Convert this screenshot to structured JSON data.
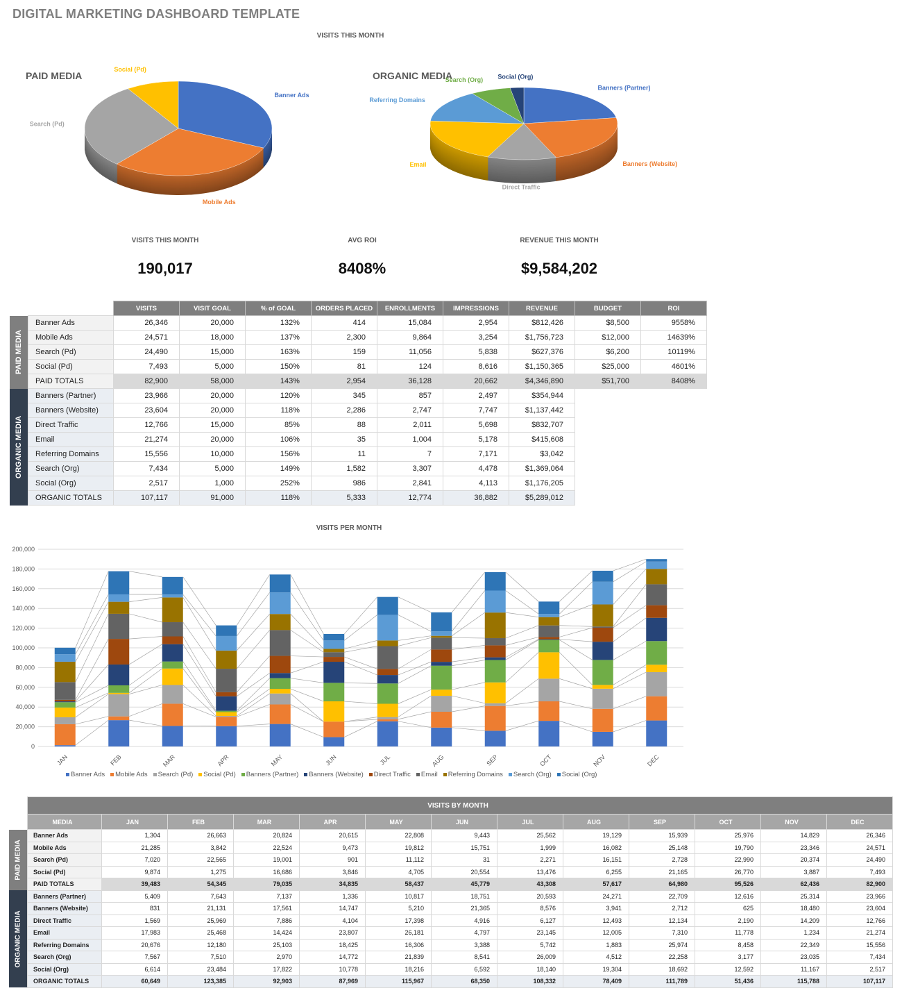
{
  "title": "DIGITAL MARKETING DASHBOARD TEMPLATE",
  "section_label": "VISITS THIS MONTH",
  "kpis": [
    {
      "label": "VISITS THIS MONTH",
      "value": "190,017"
    },
    {
      "label": "AVG ROI",
      "value": "8408%"
    },
    {
      "label": "REVENUE THIS MONTH",
      "value": "$9,584,202"
    }
  ],
  "main_table": {
    "columns": [
      "VISITS",
      "VISIT GOAL",
      "% of GOAL",
      "ORDERS PLACED",
      "ENROLLMENTS",
      "IMPRESSIONS",
      "REVENUE",
      "BUDGET",
      "ROI"
    ],
    "paid": {
      "group_label": "PAID MEDIA",
      "rows": [
        {
          "name": "Banner Ads",
          "values": [
            "26,346",
            "20,000",
            "132%",
            "414",
            "15,084",
            "2,954",
            "$812,426",
            "$8,500",
            "9558%"
          ]
        },
        {
          "name": "Mobile Ads",
          "values": [
            "24,571",
            "18,000",
            "137%",
            "2,300",
            "9,864",
            "3,254",
            "$1,756,723",
            "$12,000",
            "14639%"
          ]
        },
        {
          "name": "Search (Pd)",
          "values": [
            "24,490",
            "15,000",
            "163%",
            "159",
            "11,056",
            "5,838",
            "$627,376",
            "$6,200",
            "10119%"
          ]
        },
        {
          "name": "Social (Pd)",
          "values": [
            "7,493",
            "5,000",
            "150%",
            "81",
            "124",
            "8,616",
            "$1,150,365",
            "$25,000",
            "4601%"
          ]
        }
      ],
      "totals": {
        "name": "PAID TOTALS",
        "values": [
          "82,900",
          "58,000",
          "143%",
          "2,954",
          "36,128",
          "20,662",
          "$4,346,890",
          "$51,700",
          "8408%"
        ]
      }
    },
    "organic": {
      "group_label": "ORGANIC MEDIA",
      "rows": [
        {
          "name": "Banners (Partner)",
          "values": [
            "23,966",
            "20,000",
            "120%",
            "345",
            "857",
            "2,497",
            "$354,944"
          ]
        },
        {
          "name": "Banners (Website)",
          "values": [
            "23,604",
            "20,000",
            "118%",
            "2,286",
            "2,747",
            "7,747",
            "$1,137,442"
          ]
        },
        {
          "name": "Direct Traffic",
          "values": [
            "12,766",
            "15,000",
            "85%",
            "88",
            "2,011",
            "5,698",
            "$832,707"
          ]
        },
        {
          "name": "Email",
          "values": [
            "21,274",
            "20,000",
            "106%",
            "35",
            "1,004",
            "5,178",
            "$415,608"
          ]
        },
        {
          "name": "Referring Domains",
          "values": [
            "15,556",
            "10,000",
            "156%",
            "11",
            "7",
            "7,171",
            "$3,042"
          ]
        },
        {
          "name": "Search (Org)",
          "values": [
            "7,434",
            "5,000",
            "149%",
            "1,582",
            "3,307",
            "4,478",
            "$1,369,064"
          ]
        },
        {
          "name": "Social (Org)",
          "values": [
            "2,517",
            "1,000",
            "252%",
            "986",
            "2,841",
            "4,113",
            "$1,176,205"
          ]
        }
      ],
      "totals": {
        "name": "ORGANIC TOTALS",
        "values": [
          "107,117",
          "91,000",
          "118%",
          "5,333",
          "12,774",
          "36,882",
          "$5,289,012"
        ]
      }
    }
  },
  "monthly_table": {
    "title": "VISITS BY MONTH",
    "media_header": "MEDIA",
    "months": [
      "JAN",
      "FEB",
      "MAR",
      "APR",
      "MAY",
      "JUN",
      "JUL",
      "AUG",
      "SEP",
      "OCT",
      "NOV",
      "DEC"
    ],
    "paid": {
      "group_label": "PAID MEDIA",
      "rows": [
        {
          "name": "Banner Ads",
          "values": [
            "1,304",
            "26,663",
            "20,824",
            "20,615",
            "22,808",
            "9,443",
            "25,562",
            "19,129",
            "15,939",
            "25,976",
            "14,829",
            "26,346"
          ]
        },
        {
          "name": "Mobile Ads",
          "values": [
            "21,285",
            "3,842",
            "22,524",
            "9,473",
            "19,812",
            "15,751",
            "1,999",
            "16,082",
            "25,148",
            "19,790",
            "23,346",
            "24,571"
          ]
        },
        {
          "name": "Search (Pd)",
          "values": [
            "7,020",
            "22,565",
            "19,001",
            "901",
            "11,112",
            "31",
            "2,271",
            "16,151",
            "2,728",
            "22,990",
            "20,374",
            "24,490"
          ]
        },
        {
          "name": "Social (Pd)",
          "values": [
            "9,874",
            "1,275",
            "16,686",
            "3,846",
            "4,705",
            "20,554",
            "13,476",
            "6,255",
            "21,165",
            "26,770",
            "3,887",
            "7,493"
          ]
        }
      ],
      "totals": {
        "name": "PAID TOTALS",
        "values": [
          "39,483",
          "54,345",
          "79,035",
          "34,835",
          "58,437",
          "45,779",
          "43,308",
          "57,617",
          "64,980",
          "95,526",
          "62,436",
          "82,900"
        ]
      }
    },
    "organic": {
      "group_label": "ORGANIC MEDIA",
      "rows": [
        {
          "name": "Banners (Partner)",
          "values": [
            "5,409",
            "7,643",
            "7,137",
            "1,336",
            "10,817",
            "18,751",
            "20,593",
            "24,271",
            "22,709",
            "12,616",
            "25,314",
            "23,966"
          ]
        },
        {
          "name": "Banners (Website)",
          "values": [
            "831",
            "21,131",
            "17,561",
            "14,747",
            "5,210",
            "21,365",
            "8,576",
            "3,941",
            "2,712",
            "625",
            "18,480",
            "23,604"
          ]
        },
        {
          "name": "Direct Traffic",
          "values": [
            "1,569",
            "25,969",
            "7,886",
            "4,104",
            "17,398",
            "4,916",
            "6,127",
            "12,493",
            "12,134",
            "2,190",
            "14,209",
            "12,766"
          ]
        },
        {
          "name": "Email",
          "values": [
            "17,983",
            "25,468",
            "14,424",
            "23,807",
            "26,181",
            "4,797",
            "23,145",
            "12,005",
            "7,310",
            "11,778",
            "1,234",
            "21,274"
          ]
        },
        {
          "name": "Referring Domains",
          "values": [
            "20,676",
            "12,180",
            "25,103",
            "18,425",
            "16,306",
            "3,388",
            "5,742",
            "1,883",
            "25,974",
            "8,458",
            "22,349",
            "15,556"
          ]
        },
        {
          "name": "Search (Org)",
          "values": [
            "7,567",
            "7,510",
            "2,970",
            "14,772",
            "21,839",
            "8,541",
            "26,009",
            "4,512",
            "22,258",
            "3,177",
            "23,035",
            "7,434"
          ]
        },
        {
          "name": "Social (Org)",
          "values": [
            "6,614",
            "23,484",
            "17,822",
            "10,778",
            "18,216",
            "6,592",
            "18,140",
            "19,304",
            "18,692",
            "12,592",
            "11,167",
            "2,517"
          ]
        }
      ],
      "totals": {
        "name": "ORGANIC TOTALS",
        "values": [
          "60,649",
          "123,385",
          "92,903",
          "87,969",
          "115,967",
          "68,350",
          "108,332",
          "78,409",
          "111,789",
          "51,436",
          "115,788",
          "107,117"
        ]
      }
    }
  },
  "colors": {
    "paid_band": "#7f7f7f",
    "organic_band": "#333f4f"
  },
  "chart_data": [
    {
      "type": "pie",
      "title": "PAID MEDIA",
      "three_d": true,
      "categories": [
        "Banner Ads",
        "Mobile Ads",
        "Search (Pd)",
        "Social (Pd)"
      ],
      "values": [
        26346,
        24571,
        24490,
        7493
      ],
      "colors": [
        "#4472c4",
        "#ed7d31",
        "#a5a5a5",
        "#ffc000"
      ]
    },
    {
      "type": "pie",
      "title": "ORGANIC MEDIA",
      "three_d": true,
      "categories": [
        "Banners (Partner)",
        "Banners (Website)",
        "Direct Traffic",
        "Email",
        "Referring Domains",
        "Search (Org)",
        "Social (Org)"
      ],
      "values": [
        23966,
        23604,
        12766,
        21274,
        15556,
        7434,
        2517
      ],
      "colors": [
        "#4472c4",
        "#ed7d31",
        "#a5a5a5",
        "#ffc000",
        "#5b9bd5",
        "#70ad47",
        "#264478"
      ]
    },
    {
      "type": "bar",
      "stacked": true,
      "title": "VISITS PER MONTH",
      "ylim": [
        0,
        200000
      ],
      "ytick_step": 20000,
      "yticks": [
        "0",
        "20,000",
        "40,000",
        "60,000",
        "80,000",
        "100,000",
        "120,000",
        "140,000",
        "160,000",
        "180,000",
        "200,000"
      ],
      "grid": true,
      "legend": "bottom",
      "series_lines": true,
      "categories": [
        "JAN",
        "FEB",
        "MAR",
        "APR",
        "MAY",
        "JUN",
        "JUL",
        "AUG",
        "SEP",
        "OCT",
        "NOV",
        "DEC"
      ],
      "series": [
        {
          "name": "Banner Ads",
          "color": "#4472c4",
          "values": [
            1304,
            26663,
            20824,
            20615,
            22808,
            9443,
            25562,
            19129,
            15939,
            25976,
            14829,
            26346
          ]
        },
        {
          "name": "Mobile Ads",
          "color": "#ed7d31",
          "values": [
            21285,
            3842,
            22524,
            9473,
            19812,
            15751,
            1999,
            16082,
            25148,
            19790,
            23346,
            24571
          ]
        },
        {
          "name": "Search (Pd)",
          "color": "#a5a5a5",
          "values": [
            7020,
            22565,
            19001,
            901,
            11112,
            31,
            2271,
            16151,
            2728,
            22990,
            20374,
            24490
          ]
        },
        {
          "name": "Social (Pd)",
          "color": "#ffc000",
          "values": [
            9874,
            1275,
            16686,
            3846,
            4705,
            20554,
            13476,
            6255,
            21165,
            26770,
            3887,
            7493
          ]
        },
        {
          "name": "Banners (Partner)",
          "color": "#70ad47",
          "values": [
            5409,
            7643,
            7137,
            1336,
            10817,
            18751,
            20593,
            24271,
            22709,
            12616,
            25314,
            23966
          ]
        },
        {
          "name": "Banners (Website)",
          "color": "#264478",
          "values": [
            831,
            21131,
            17561,
            14747,
            5210,
            21365,
            8576,
            3941,
            2712,
            625,
            18480,
            23604
          ]
        },
        {
          "name": "Direct Traffic",
          "color": "#9e480e",
          "values": [
            1569,
            25969,
            7886,
            4104,
            17398,
            4916,
            6127,
            12493,
            12134,
            2190,
            14209,
            12766
          ]
        },
        {
          "name": "Email",
          "color": "#636363",
          "values": [
            17983,
            25468,
            14424,
            23807,
            26181,
            4797,
            23145,
            12005,
            7310,
            11778,
            1234,
            21274
          ]
        },
        {
          "name": "Referring Domains",
          "color": "#997300",
          "values": [
            20676,
            12180,
            25103,
            18425,
            16306,
            3388,
            5742,
            1883,
            25974,
            8458,
            22349,
            15556
          ]
        },
        {
          "name": "Search (Org)",
          "color": "#5b9bd5",
          "values": [
            7567,
            7510,
            2970,
            14772,
            21839,
            8541,
            26009,
            4512,
            22258,
            3177,
            23035,
            7434
          ]
        },
        {
          "name": "Social (Org)",
          "color": "#2e75b6",
          "values": [
            6614,
            23484,
            17822,
            10778,
            18216,
            6592,
            18140,
            19304,
            18692,
            12592,
            11167,
            2517
          ]
        }
      ]
    }
  ]
}
